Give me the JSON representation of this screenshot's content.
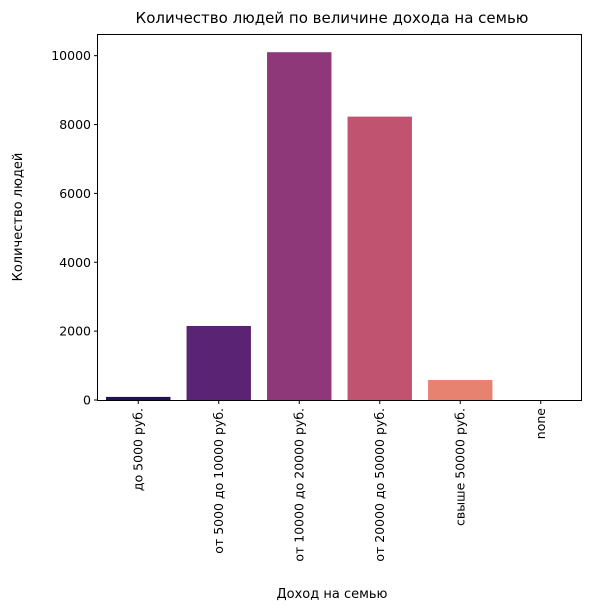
{
  "chart_data": {
    "type": "bar",
    "title": "Количество людей по величине дохода на семью",
    "xlabel": "Доход на семью",
    "ylabel": "Количество людей",
    "categories": [
      "до 5000 руб.",
      "от 5000 до 10000 руб.",
      "от 10000 до 20000 руб.",
      "от 20000 до 50000 руб.",
      "свыше 50000 руб.",
      "none"
    ],
    "values": [
      90,
      2150,
      10100,
      8230,
      580,
      0
    ],
    "colors": [
      "#221150",
      "#5b2373",
      "#8e3779",
      "#c0536f",
      "#e88270",
      "#fcb789"
    ],
    "ylim": [
      0,
      10600
    ],
    "yticks": [
      0,
      2000,
      4000,
      6000,
      8000,
      10000
    ],
    "ytick_labels": [
      "0",
      "2000",
      "4000",
      "6000",
      "8000",
      "10000"
    ],
    "grid": false,
    "legend": "none"
  }
}
